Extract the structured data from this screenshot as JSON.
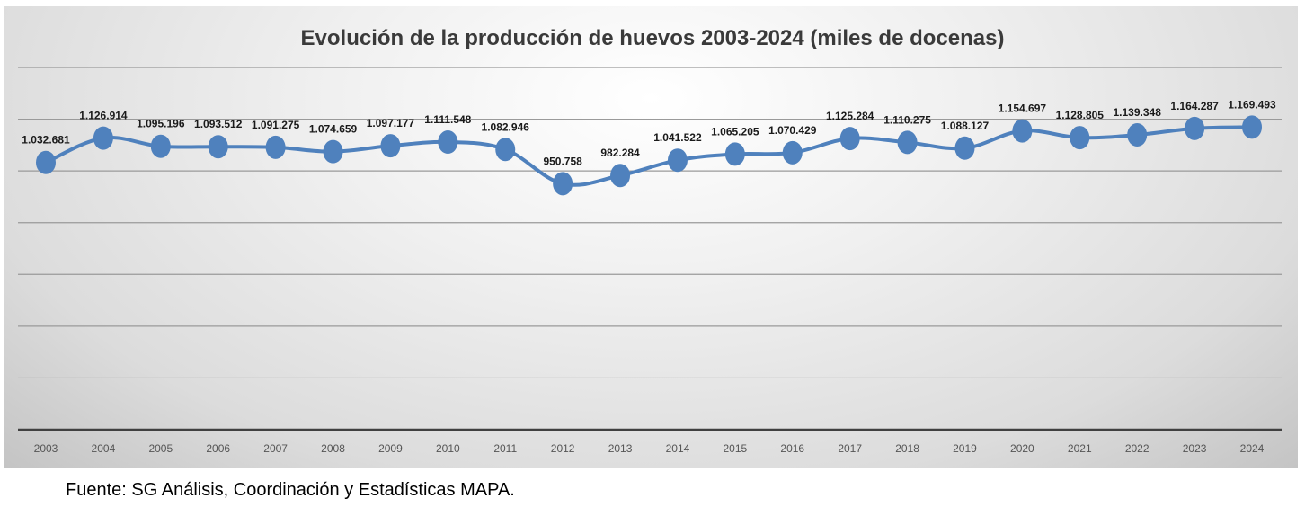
{
  "chart_data": {
    "type": "line",
    "title": "Evolución de la producción de huevos 2003-2024 (miles de docenas)",
    "xlabel": "",
    "ylabel": "",
    "categories": [
      "2003",
      "2004",
      "2005",
      "2006",
      "2007",
      "2008",
      "2009",
      "2010",
      "2011",
      "2012",
      "2013",
      "2014",
      "2015",
      "2016",
      "2017",
      "2018",
      "2019",
      "2020",
      "2021",
      "2022",
      "2023",
      "2024"
    ],
    "series": [
      {
        "name": "Producción de huevos (miles de docenas)",
        "color": "#4f81bd",
        "values": [
          1032681,
          1126914,
          1095196,
          1093512,
          1091275,
          1074659,
          1097177,
          1111548,
          1082946,
          950758,
          982284,
          1041522,
          1065205,
          1070429,
          1125284,
          1110275,
          1088127,
          1154697,
          1128805,
          1139348,
          1164287,
          1169493
        ],
        "data_labels": [
          "1.032.681",
          "1.126.914",
          "1.095.196",
          "1.093.512",
          "1.091.275",
          "1.074.659",
          "1.097.177",
          "1.111.548",
          "1.082.946",
          "950.758",
          "982.284",
          "1.041.522",
          "1.065.205",
          "1.070.429",
          "1.125.284",
          "1.110.275",
          "1.088.127",
          "1.154.697",
          "1.128.805",
          "1.139.348",
          "1.164.287",
          "1.169.493"
        ]
      }
    ],
    "ylim": [
      0,
      1400000
    ],
    "y_gridline_step": 200000,
    "y_tick_labels_visible": false,
    "grid": true,
    "legend": "none"
  },
  "source_note": "Fuente: SG Análisis, Coordinación y Estadísticas MAPA."
}
